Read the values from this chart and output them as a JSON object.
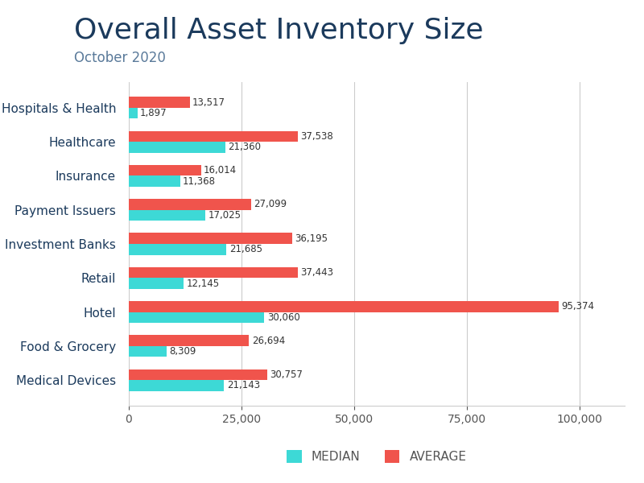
{
  "title": "Overall Asset Inventory Size",
  "subtitle": "October 2020",
  "categories": [
    "Hospitals & Health",
    "Healthcare",
    "Insurance",
    "Payment Issuers",
    "Investment Banks",
    "Retail",
    "Hotel",
    "Food & Grocery",
    "Medical Devices"
  ],
  "median": [
    1897,
    21360,
    11368,
    17025,
    21685,
    12145,
    30060,
    8309,
    21143
  ],
  "average": [
    13517,
    37538,
    16014,
    27099,
    36195,
    37443,
    95374,
    26694,
    30757
  ],
  "median_color": "#3DD9D6",
  "average_color": "#F0544C",
  "title_color": "#1B3A5C",
  "subtitle_color": "#5A7A9A",
  "label_color": "#1B3A5C",
  "tick_color": "#555555",
  "bar_value_color": "#333333",
  "background_color": "#FFFFFF",
  "grid_color": "#CCCCCC",
  "xlim": [
    0,
    110000
  ],
  "xtick_values": [
    0,
    25000,
    50000,
    75000,
    100000
  ],
  "bar_height": 0.32,
  "title_fontsize": 26,
  "subtitle_fontsize": 12,
  "label_fontsize": 11,
  "tick_fontsize": 10,
  "value_fontsize": 8.5,
  "legend_fontsize": 11
}
